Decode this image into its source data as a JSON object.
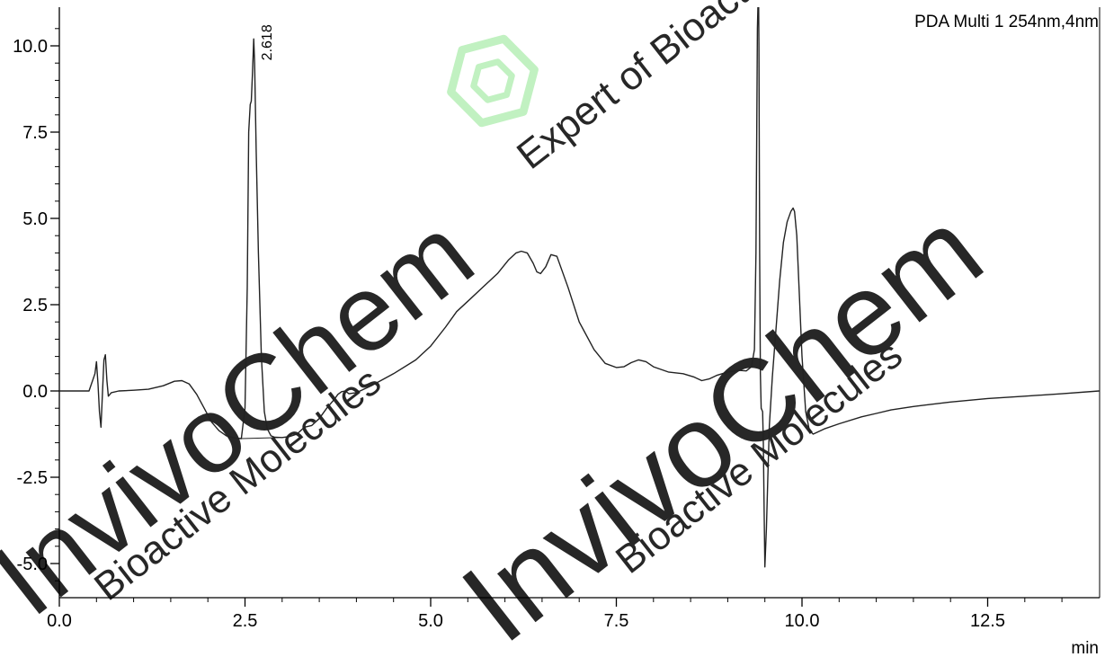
{
  "chart_data": {
    "type": "line",
    "title": "",
    "legend_label": "PDA Multi 1 254nm,4nm",
    "legend_position": "top-right",
    "xlabel": "min",
    "ylabel": "",
    "xlim": [
      0.0,
      14.0
    ],
    "ylim": [
      -6.0,
      11.0
    ],
    "grid": false,
    "x_ticks": [
      0.0,
      2.5,
      5.0,
      7.5,
      10.0,
      12.5
    ],
    "x_tick_labels": [
      "0.0",
      "2.5",
      "5.0",
      "7.5",
      "10.0",
      "12.5"
    ],
    "y_ticks": [
      10.0,
      7.5,
      5.0,
      2.5,
      0.0,
      -2.5,
      -5.0
    ],
    "y_tick_labels": [
      "10.0",
      "7.5",
      "5.0",
      "2.5",
      "0.0",
      "-2.5",
      "-5.0"
    ],
    "peak_annotations": [
      {
        "x": 2.618,
        "y": 10.2,
        "label": "2.618"
      }
    ],
    "baseline_segment": {
      "x": [
        2.45,
        2.95
      ],
      "y": [
        -1.38,
        -1.35
      ]
    },
    "series": [
      {
        "x": [
          0.0,
          0.4,
          0.48,
          0.5,
          0.52,
          0.54,
          0.56,
          0.58,
          0.6,
          0.62,
          0.64,
          0.66,
          0.7,
          0.8,
          1.0,
          1.2,
          1.4,
          1.55,
          1.65,
          1.75,
          1.85,
          1.95,
          2.05,
          2.15,
          2.25,
          2.35,
          2.45,
          2.5,
          2.53,
          2.55,
          2.57,
          2.585,
          2.6,
          2.618,
          2.63,
          2.65,
          2.68,
          2.72,
          2.76,
          2.8,
          2.85,
          2.9,
          3.0,
          3.1,
          3.2,
          3.3,
          3.4,
          3.5,
          3.6,
          3.7,
          3.75,
          3.8,
          3.85,
          3.9,
          4.0,
          4.2,
          4.5,
          4.8,
          5.0,
          5.2,
          5.35,
          5.5,
          5.7,
          5.9,
          6.05,
          6.15,
          6.22,
          6.3,
          6.38,
          6.43,
          6.48,
          6.55,
          6.62,
          6.7,
          6.85,
          7.0,
          7.2,
          7.35,
          7.5,
          7.6,
          7.7,
          7.8,
          7.9,
          8.0,
          8.2,
          8.4,
          8.55,
          8.65,
          8.75,
          8.85,
          9.0,
          9.15,
          9.25,
          9.32,
          9.36,
          9.38,
          9.4,
          9.41,
          9.415,
          9.42,
          9.43,
          9.44,
          9.45,
          9.46,
          9.47,
          9.48,
          9.49,
          9.5,
          9.52,
          9.54,
          9.56,
          9.6,
          9.65,
          9.7,
          9.75,
          9.8,
          9.85,
          9.88,
          9.9,
          9.93,
          9.96,
          10.0,
          10.05,
          10.1,
          10.15,
          10.2,
          10.3,
          10.5,
          10.8,
          11.0,
          11.2,
          11.5,
          12.0,
          12.5,
          13.0,
          13.5,
          14.0
        ],
        "y": [
          0.0,
          0.0,
          0.5,
          0.85,
          0.2,
          -0.6,
          -1.05,
          -0.1,
          0.9,
          1.05,
          0.3,
          -0.15,
          -0.05,
          0.0,
          0.02,
          0.05,
          0.15,
          0.28,
          0.3,
          0.2,
          -0.1,
          -0.5,
          -0.9,
          -1.15,
          -1.3,
          -1.36,
          -1.38,
          -0.5,
          3.0,
          7.5,
          8.3,
          8.4,
          9.2,
          10.2,
          9.5,
          7.0,
          4.0,
          1.0,
          -0.6,
          -1.1,
          -1.3,
          -1.34,
          -1.35,
          -1.32,
          -1.25,
          -1.05,
          -1.0,
          -0.8,
          -0.5,
          -0.25,
          -0.1,
          -0.02,
          0.0,
          -0.08,
          -0.05,
          0.15,
          0.5,
          0.9,
          1.3,
          1.85,
          2.3,
          2.6,
          3.0,
          3.4,
          3.8,
          4.0,
          4.05,
          4.0,
          3.7,
          3.45,
          3.4,
          3.6,
          3.95,
          3.9,
          3.0,
          2.0,
          1.2,
          0.8,
          0.68,
          0.7,
          0.82,
          0.9,
          0.85,
          0.7,
          0.55,
          0.5,
          0.4,
          0.3,
          0.35,
          0.45,
          0.55,
          0.6,
          0.58,
          0.7,
          1.2,
          4.0,
          10.5,
          11.5,
          11.5,
          10.0,
          4.0,
          0.5,
          -0.5,
          -0.55,
          -0.6,
          -1.5,
          -3.5,
          -5.1,
          -4.0,
          -2.5,
          -1.0,
          0.4,
          1.8,
          3.2,
          4.3,
          4.9,
          5.2,
          5.3,
          5.2,
          4.5,
          3.0,
          1.0,
          -0.6,
          -1.15,
          -1.25,
          -1.2,
          -1.1,
          -0.95,
          -0.75,
          -0.65,
          -0.55,
          -0.45,
          -0.32,
          -0.22,
          -0.15,
          -0.08,
          0.0
        ]
      }
    ]
  },
  "watermark": {
    "brand": "InvivoChem",
    "tagline_1": "Bioactive Molecules",
    "tagline_2": "Expert of Bioactive Molecules",
    "brand_color": "#f5b5b5",
    "tagline_color": "#f7dfa8",
    "tagline_alt_color": "#c9dcf0",
    "logo_color": "#b6efb6"
  },
  "colors": {
    "trace": "#222222",
    "axis": "#000000",
    "background": "#ffffff"
  }
}
